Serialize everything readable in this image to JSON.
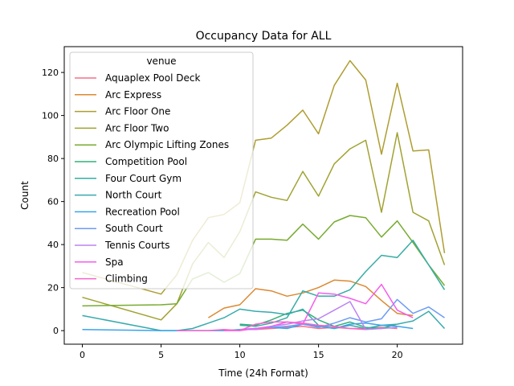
{
  "chart_data": {
    "type": "line",
    "title": "Occupancy Data for ALL",
    "xlabel": "Time (24h Format)",
    "ylabel": "Count",
    "xlim": [
      -1.15,
      24.15
    ],
    "ylim": [
      -6.3,
      132
    ],
    "xticks": [
      0,
      5,
      10,
      15,
      20
    ],
    "yticks": [
      0,
      20,
      40,
      60,
      80,
      100,
      120
    ],
    "grid": false,
    "legend": {
      "title": "venue",
      "placement": "top-left"
    },
    "series": [
      {
        "name": "Aquaplex Pool Deck",
        "color": "#f77189",
        "points": [
          [
            11,
            0.5
          ],
          [
            12,
            1
          ],
          [
            13,
            1.5
          ],
          [
            14,
            2
          ],
          [
            15,
            1
          ],
          [
            16,
            1.5
          ],
          [
            17,
            1
          ],
          [
            18,
            1
          ],
          [
            19,
            1.5
          ],
          [
            20,
            1
          ]
        ]
      },
      {
        "name": "Arc Express",
        "color": "#dc8932",
        "points": [
          [
            8,
            6
          ],
          [
            9,
            10.5
          ],
          [
            10,
            12
          ],
          [
            11,
            19.5
          ],
          [
            12,
            18.5
          ],
          [
            13,
            16
          ],
          [
            14,
            17.5
          ],
          [
            15,
            20
          ],
          [
            16,
            23.5
          ],
          [
            17,
            23
          ],
          [
            18,
            20.5
          ],
          [
            19,
            14
          ],
          [
            20,
            8
          ],
          [
            21,
            7
          ]
        ]
      },
      {
        "name": "Arc Floor One",
        "color": "#ae9d31",
        "points": [
          [
            0,
            27
          ],
          [
            5,
            17
          ],
          [
            6,
            26
          ],
          [
            7,
            42
          ],
          [
            8,
            52.5
          ],
          [
            9,
            54
          ],
          [
            10,
            59.5
          ],
          [
            11,
            88.5
          ],
          [
            12,
            89.5
          ],
          [
            13,
            95.5
          ],
          [
            14,
            102.5
          ],
          [
            15,
            91.5
          ],
          [
            16,
            114
          ],
          [
            17,
            125.5
          ],
          [
            18,
            116.5
          ],
          [
            19,
            82
          ],
          [
            20,
            115
          ],
          [
            21,
            83.5
          ],
          [
            22,
            84
          ],
          [
            23,
            36
          ]
        ]
      },
      {
        "name": "Arc Floor Two",
        "color": "#a1a232",
        "points": [
          [
            0,
            15.5
          ],
          [
            5,
            5
          ],
          [
            6,
            12.5
          ],
          [
            7,
            31
          ],
          [
            8,
            41
          ],
          [
            9,
            34
          ],
          [
            10,
            46
          ],
          [
            11,
            64.5
          ],
          [
            12,
            62
          ],
          [
            13,
            60.5
          ],
          [
            14,
            74
          ],
          [
            15,
            62.5
          ],
          [
            16,
            77.5
          ],
          [
            17,
            84.5
          ],
          [
            18,
            88.5
          ],
          [
            19,
            55
          ],
          [
            20,
            92
          ],
          [
            21,
            55
          ],
          [
            22,
            51
          ],
          [
            23,
            30.5
          ]
        ]
      },
      {
        "name": "Arc Olympic Lifting Zones",
        "color": "#77ab31",
        "points": [
          [
            0,
            11.5
          ],
          [
            5,
            12
          ],
          [
            6,
            12.5
          ],
          [
            7,
            24
          ],
          [
            8,
            27
          ],
          [
            9,
            22.5
          ],
          [
            10,
            26.5
          ],
          [
            11,
            42.5
          ],
          [
            12,
            42.5
          ],
          [
            13,
            42
          ],
          [
            14,
            49.5
          ],
          [
            15,
            42.5
          ],
          [
            16,
            50.5
          ],
          [
            17,
            53.5
          ],
          [
            18,
            52.5
          ],
          [
            19,
            43.5
          ],
          [
            20,
            51
          ],
          [
            21,
            41
          ],
          [
            22,
            30.5
          ],
          [
            23,
            21
          ]
        ]
      },
      {
        "name": "Competition Pool",
        "color": "#33b07a",
        "points": [
          [
            10,
            3
          ],
          [
            11,
            2.5
          ],
          [
            12,
            5
          ],
          [
            13,
            8
          ],
          [
            14,
            9.5
          ],
          [
            15,
            5
          ],
          [
            16,
            2
          ],
          [
            17,
            4
          ],
          [
            18,
            1.5
          ],
          [
            19,
            1
          ],
          [
            20,
            3
          ]
        ]
      },
      {
        "name": "Four Court Gym",
        "color": "#36ada4",
        "points": [
          [
            10,
            2.5
          ],
          [
            11,
            2
          ],
          [
            12,
            3.5
          ],
          [
            13,
            6
          ],
          [
            14,
            18.5
          ],
          [
            15,
            16
          ],
          [
            16,
            16
          ],
          [
            17,
            19
          ],
          [
            18,
            27.5
          ],
          [
            19,
            35
          ],
          [
            20,
            34
          ],
          [
            21,
            42
          ],
          [
            22,
            30.5
          ],
          [
            23,
            19
          ]
        ]
      },
      {
        "name": "North Court",
        "color": "#38aaac",
        "points": [
          [
            0,
            7
          ],
          [
            5,
            0
          ],
          [
            6,
            0
          ],
          [
            7,
            1
          ],
          [
            8,
            3.5
          ],
          [
            9,
            6
          ],
          [
            10,
            10
          ],
          [
            11,
            9
          ],
          [
            12,
            8.5
          ],
          [
            13,
            7.5
          ],
          [
            14,
            10
          ],
          [
            15,
            2.5
          ],
          [
            16,
            1
          ],
          [
            17,
            2.5
          ],
          [
            18,
            1
          ],
          [
            19,
            2.5
          ],
          [
            20,
            3
          ],
          [
            21,
            4.5
          ],
          [
            22,
            9
          ],
          [
            23,
            1
          ]
        ]
      },
      {
        "name": "Recreation Pool",
        "color": "#3ba3ec",
        "points": [
          [
            0,
            0.5
          ],
          [
            5,
            0
          ],
          [
            6,
            0
          ],
          [
            7,
            0
          ],
          [
            8,
            0
          ],
          [
            9,
            0
          ],
          [
            10,
            0.5
          ],
          [
            11,
            1
          ],
          [
            12,
            1.5
          ],
          [
            13,
            1
          ],
          [
            14,
            3
          ],
          [
            15,
            2
          ],
          [
            16,
            1
          ],
          [
            17,
            3
          ],
          [
            18,
            3.5
          ],
          [
            19,
            2.5
          ],
          [
            20,
            2
          ],
          [
            21,
            1
          ]
        ]
      },
      {
        "name": "South Court",
        "color": "#6e9bf4",
        "points": [
          [
            10,
            0.5
          ],
          [
            11,
            1
          ],
          [
            12,
            1.5
          ],
          [
            13,
            2
          ],
          [
            14,
            3
          ],
          [
            15,
            1.5
          ],
          [
            16,
            3.5
          ],
          [
            17,
            6
          ],
          [
            18,
            4
          ],
          [
            19,
            5.5
          ],
          [
            20,
            14.5
          ],
          [
            21,
            8
          ],
          [
            22,
            11
          ],
          [
            23,
            6
          ]
        ]
      },
      {
        "name": "Tennis Courts",
        "color": "#bb83f4",
        "points": [
          [
            10,
            0.5
          ],
          [
            11,
            0.5
          ],
          [
            12,
            2
          ],
          [
            13,
            3
          ],
          [
            14,
            4.5
          ],
          [
            15,
            5.5
          ],
          [
            16,
            9.5
          ],
          [
            17,
            13.5
          ],
          [
            18,
            0.5
          ],
          [
            19,
            1
          ],
          [
            20,
            1.5
          ]
        ]
      },
      {
        "name": "Spa",
        "color": "#f45deb",
        "points": [
          [
            9,
            0
          ],
          [
            10,
            0
          ],
          [
            11,
            1
          ],
          [
            12,
            2
          ],
          [
            13,
            4
          ],
          [
            14,
            3
          ],
          [
            15,
            17.5
          ],
          [
            16,
            17
          ],
          [
            17,
            15
          ],
          [
            18,
            12.5
          ],
          [
            19,
            21.5
          ],
          [
            20,
            9.5
          ],
          [
            21,
            6
          ]
        ]
      },
      {
        "name": "Climbing",
        "color": "#f565cc",
        "points": [
          [
            6,
            0
          ],
          [
            7,
            0
          ],
          [
            8,
            0
          ],
          [
            9,
            0.5
          ],
          [
            10,
            0
          ],
          [
            11,
            3
          ],
          [
            12,
            4
          ],
          [
            13,
            4
          ],
          [
            14,
            3.5
          ],
          [
            15,
            2.5
          ],
          [
            16,
            2
          ],
          [
            17,
            1
          ],
          [
            18,
            0.5
          ]
        ]
      }
    ]
  }
}
